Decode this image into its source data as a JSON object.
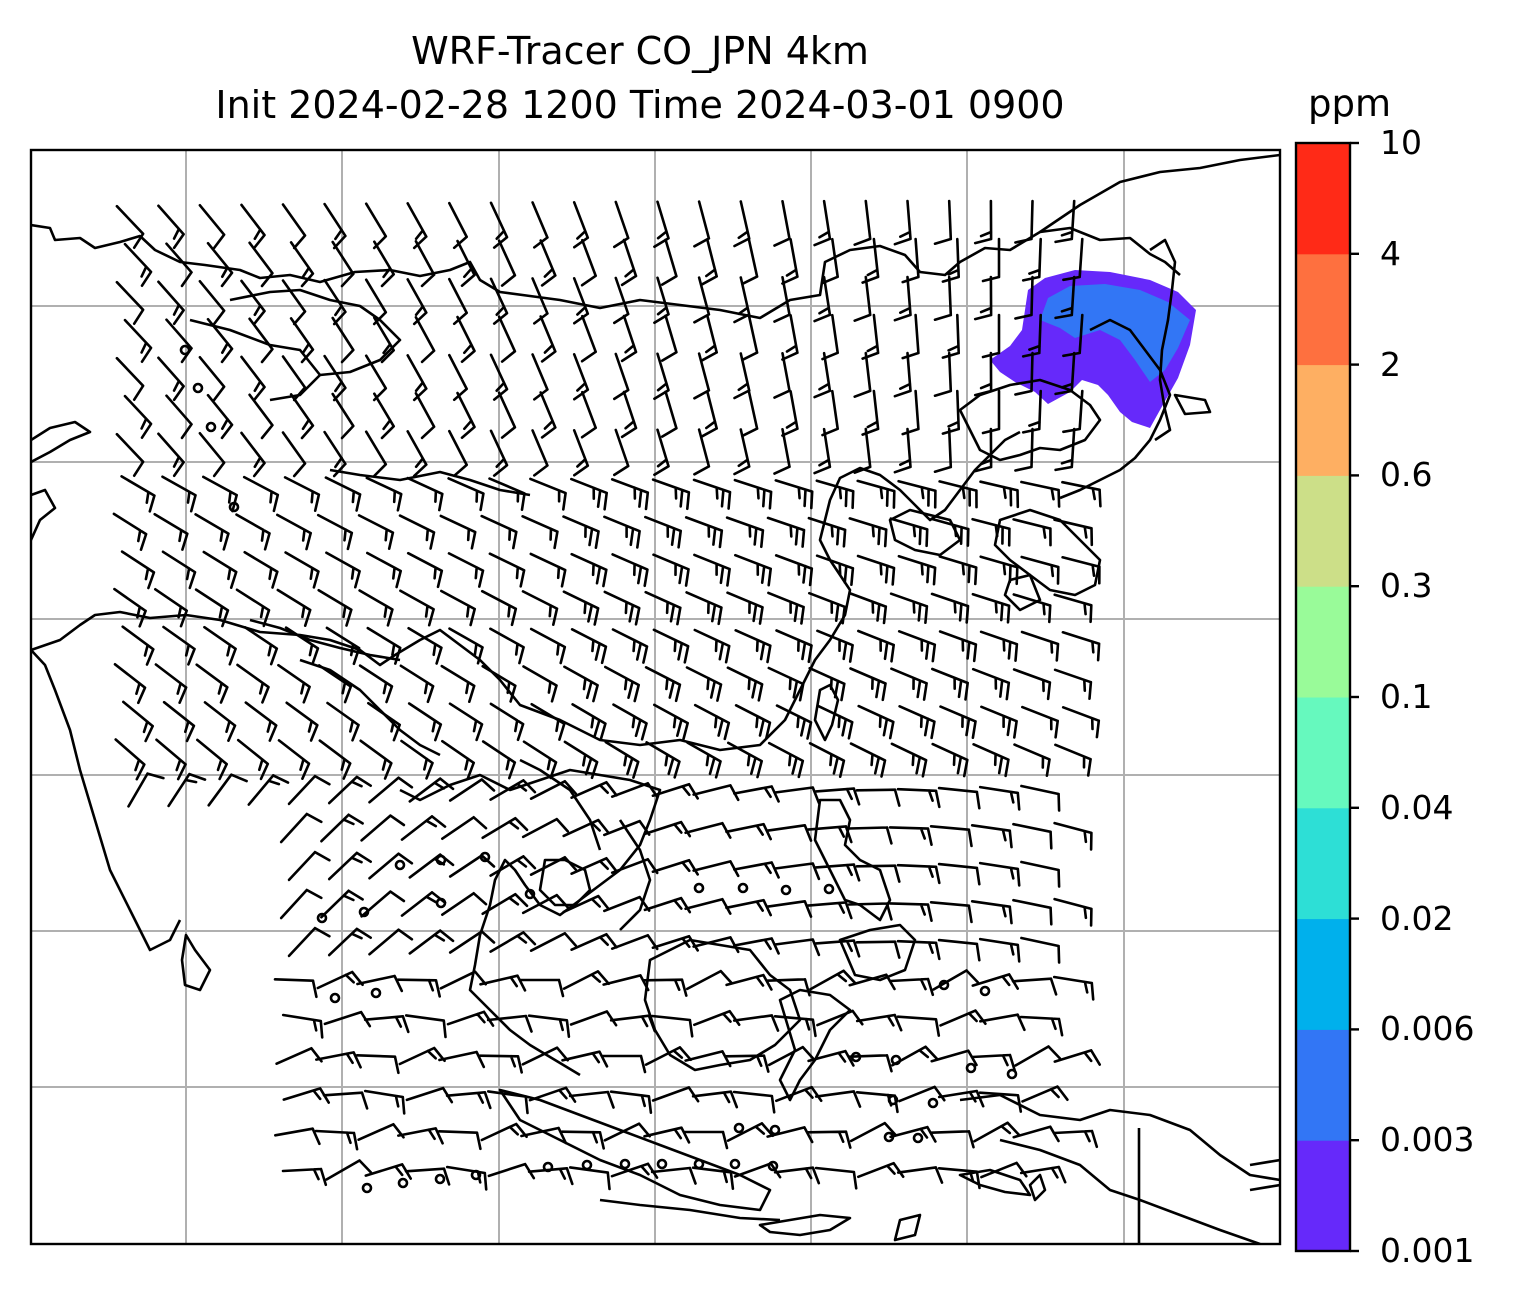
{
  "title": {
    "line1": "WRF-Tracer CO_JPN 4km",
    "line2": "Init 2024-02-28 1200 Time 2024-03-01 0900"
  },
  "colorbar": {
    "unit": "ppm",
    "levels": [
      "0.001",
      "0.003",
      "0.006",
      "0.02",
      "0.04",
      "0.1",
      "0.3",
      "0.6",
      "2",
      "4",
      "10"
    ],
    "colors": [
      "#6629fa",
      "#3276f5",
      "#00b0ec",
      "#2ddfd6",
      "#66f9be",
      "#99fb99",
      "#ccdf88",
      "#feaf62",
      "#fe703f",
      "#ff2a17"
    ]
  },
  "map": {
    "gridlines": true,
    "coastlines": true,
    "plume_level_colors": [
      "#6629fa",
      "#3276f5"
    ],
    "barbs": "wind barbs",
    "calm_marker": "circle"
  }
}
